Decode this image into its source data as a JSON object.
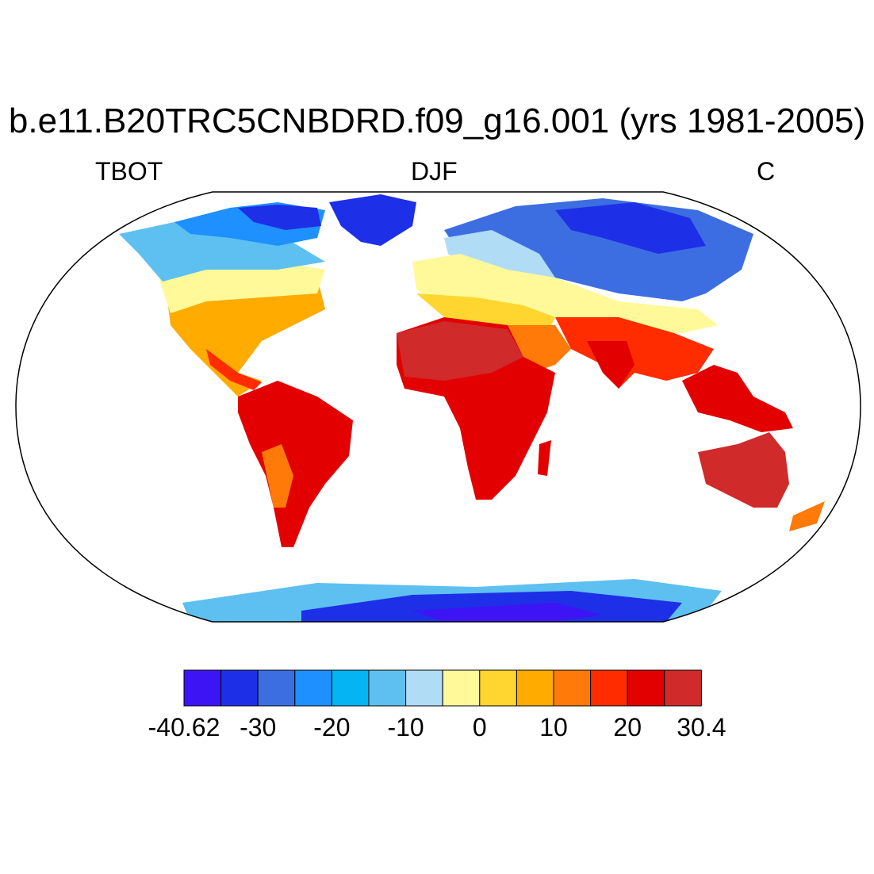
{
  "title": "b.e11.B20TRC5CNBDRD.f09_g16.001 (yrs 1981-2005)",
  "left_label": "TBOT",
  "center_label": "DJF",
  "right_label": "C",
  "colorbar": {
    "colors": [
      "#3d14f4",
      "#1e2fe8",
      "#3c6ee2",
      "#1e90ff",
      "#05b4f3",
      "#5ec0f0",
      "#b0dcf5",
      "#fff99a",
      "#ffd52f",
      "#ffab00",
      "#ff7a08",
      "#ff2c00",
      "#e20000",
      "#d02a2a"
    ],
    "tick_labels": [
      "-40.62",
      "-30",
      "-20",
      "-10",
      "0",
      "10",
      "20",
      "30.4"
    ]
  }
}
